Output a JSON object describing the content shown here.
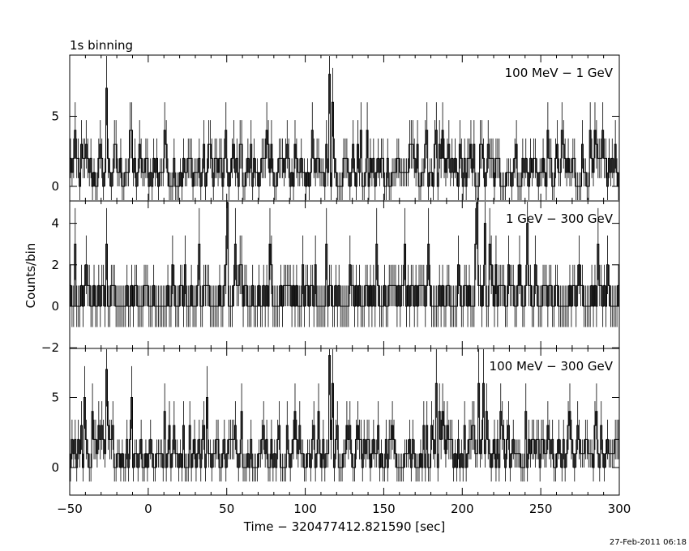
{
  "title": "1s binning",
  "timestamp": "27-Feb-2011 06:18",
  "chart_data": [
    {
      "type": "line",
      "label": "100 MeV - 1 GeV",
      "xlim": [
        -50,
        300
      ],
      "ylim": [
        -1,
        8
      ],
      "yticks": [
        0,
        5
      ],
      "xticks": [
        -50,
        0,
        50,
        100,
        150,
        200,
        250,
        300
      ],
      "peaks": [
        {
          "t": -27,
          "counts": 7
        },
        {
          "t": -40,
          "counts": 3
        },
        {
          "t": -11,
          "counts": 4
        },
        {
          "t": 10,
          "counts": 4
        },
        {
          "t": 38,
          "counts": 3
        },
        {
          "t": 59,
          "counts": 3
        },
        {
          "t": 76,
          "counts": 3
        },
        {
          "t": 93,
          "counts": 3
        },
        {
          "t": 115,
          "counts": 8
        },
        {
          "t": 117,
          "counts": 6
        },
        {
          "t": 168,
          "counts": 3
        },
        {
          "t": 183,
          "counts": 4
        },
        {
          "t": 211,
          "counts": 3
        },
        {
          "t": 264,
          "counts": 3
        },
        {
          "t": 285,
          "counts": 3
        }
      ]
    },
    {
      "type": "line",
      "label": "1 GeV - 300 GeV",
      "xlim": [
        -50,
        300
      ],
      "ylim": [
        -1.5,
        5
      ],
      "yticks": [
        -2,
        0,
        2,
        4
      ],
      "xticks": [
        -50,
        0,
        50,
        100,
        150,
        200,
        250,
        300
      ],
      "peaks": [
        {
          "t": -27,
          "counts": 3
        },
        {
          "t": 32,
          "counts": 3
        },
        {
          "t": 50,
          "counts": 5
        },
        {
          "t": 55,
          "counts": 3
        },
        {
          "t": 77,
          "counts": 3
        },
        {
          "t": 113,
          "counts": 3
        },
        {
          "t": 145,
          "counts": 3
        },
        {
          "t": 163,
          "counts": 3
        },
        {
          "t": 209,
          "counts": 5
        },
        {
          "t": 214,
          "counts": 4
        },
        {
          "t": 241,
          "counts": 4
        },
        {
          "t": 286,
          "counts": 3
        }
      ]
    },
    {
      "type": "line",
      "label": "100 MeV - 300 GeV",
      "xlim": [
        -50,
        300
      ],
      "ylim": [
        -1,
        8
      ],
      "yticks": [
        0,
        5
      ],
      "xticks": [
        -50,
        0,
        50,
        100,
        150,
        200,
        250,
        300
      ],
      "peaks": [
        {
          "t": -41,
          "counts": 5
        },
        {
          "t": -27,
          "counts": 7
        },
        {
          "t": -11,
          "counts": 5
        },
        {
          "t": 10,
          "counts": 4
        },
        {
          "t": 37,
          "counts": 5
        },
        {
          "t": 59,
          "counts": 4
        },
        {
          "t": 93,
          "counts": 4
        },
        {
          "t": 115,
          "counts": 8
        },
        {
          "t": 117,
          "counts": 6
        },
        {
          "t": 183,
          "counts": 6
        },
        {
          "t": 210,
          "counts": 6
        },
        {
          "t": 213,
          "counts": 6
        },
        {
          "t": 268,
          "counts": 4
        },
        {
          "t": 285,
          "counts": 4
        }
      ]
    }
  ],
  "axes": {
    "xlabel": "Time − 320477412.821590 [sec]",
    "ylabel": "Counts/bin"
  }
}
